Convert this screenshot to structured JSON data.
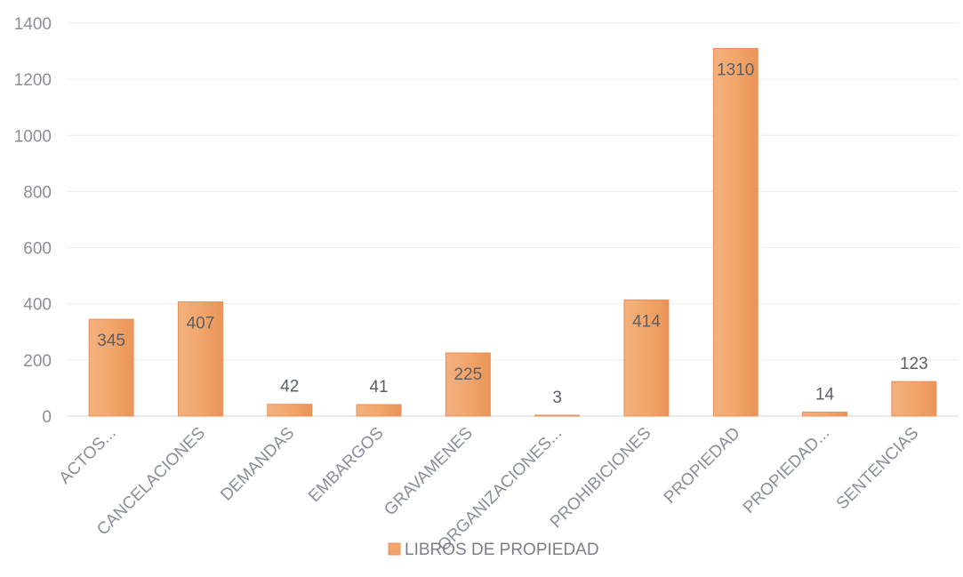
{
  "chart_data": {
    "type": "bar",
    "categories": [
      "ACTOS...",
      "CANCELACIONES",
      "DEMANDAS",
      "EMBARGOS",
      "GRAVAMENES",
      "ORGANIZACIONES...",
      "PROHIBICIONES",
      "PROPIEDAD",
      "PROPIEDAD...",
      "SENTENCIAS"
    ],
    "series": [
      {
        "name": "LIBROS DE PROPIEDAD",
        "values": [
          345,
          407,
          42,
          41,
          225,
          3,
          414,
          1310,
          14,
          123
        ]
      }
    ],
    "y_ticks": [
      "0",
      "200",
      "400",
      "600",
      "800",
      "1000",
      "1200",
      "1400"
    ],
    "ylim": [
      0,
      1400
    ],
    "grid": true,
    "legend_position": "bottom",
    "colors": {
      "bar": "#f2a66b",
      "bar_edge": "#e8905a"
    }
  }
}
